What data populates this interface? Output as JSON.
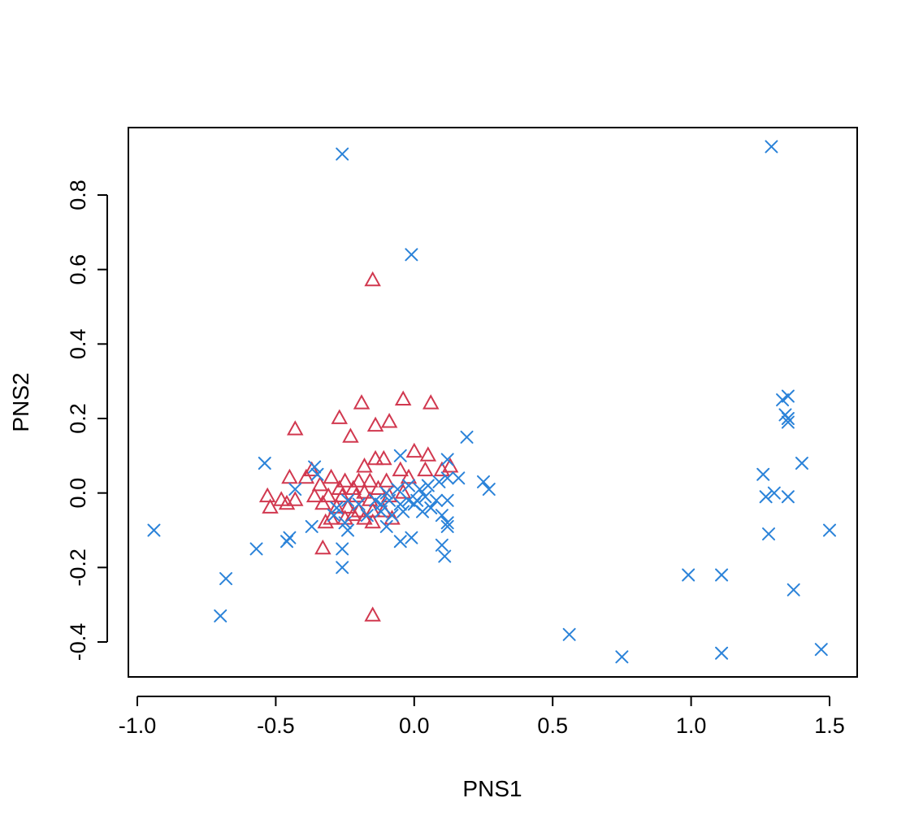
{
  "chart_data": {
    "type": "scatter",
    "xlabel": "PNS1",
    "ylabel": "PNS2",
    "xlim": [
      -1.0,
      1.5
    ],
    "ylim": [
      -0.45,
      0.93
    ],
    "x_ticks": [
      -1.0,
      -0.5,
      0.0,
      0.5,
      1.0,
      1.5
    ],
    "x_tick_labels": [
      "-1.0",
      "-0.5",
      "0.0",
      "0.5",
      "1.0",
      "1.5"
    ],
    "y_ticks": [
      -0.4,
      -0.2,
      0.0,
      0.2,
      0.4,
      0.6,
      0.8
    ],
    "y_tick_labels": [
      "-0.4",
      "-0.2",
      "0.0",
      "0.2",
      "0.4",
      "0.6",
      "0.8"
    ],
    "grid": false,
    "series": [
      {
        "marker": "triangle",
        "color": "#D1384F",
        "points": [
          [
            -0.15,
            0.57
          ],
          [
            -0.04,
            0.25
          ],
          [
            -0.19,
            0.24
          ],
          [
            0.06,
            0.24
          ],
          [
            -0.27,
            0.2
          ],
          [
            -0.09,
            0.19
          ],
          [
            -0.14,
            0.18
          ],
          [
            -0.43,
            0.17
          ],
          [
            -0.23,
            0.15
          ],
          [
            0.0,
            0.11
          ],
          [
            0.05,
            0.1
          ],
          [
            -0.14,
            0.09
          ],
          [
            -0.11,
            0.09
          ],
          [
            0.13,
            0.07
          ],
          [
            -0.18,
            0.07
          ],
          [
            0.1,
            0.06
          ],
          [
            -0.05,
            0.06
          ],
          [
            0.04,
            0.06
          ],
          [
            -0.37,
            0.06
          ],
          [
            -0.39,
            0.04
          ],
          [
            -0.45,
            0.04
          ],
          [
            -0.3,
            0.04
          ],
          [
            -0.25,
            0.03
          ],
          [
            -0.2,
            0.03
          ],
          [
            -0.16,
            0.03
          ],
          [
            -0.1,
            0.03
          ],
          [
            -0.02,
            0.04
          ],
          [
            -0.34,
            0.02
          ],
          [
            -0.27,
            0.01
          ],
          [
            -0.22,
            0.01
          ],
          [
            -0.18,
            0.0
          ],
          [
            -0.13,
            0.01
          ],
          [
            -0.53,
            -0.01
          ],
          [
            -0.48,
            -0.02
          ],
          [
            -0.43,
            -0.02
          ],
          [
            -0.36,
            -0.01
          ],
          [
            -0.31,
            -0.01
          ],
          [
            -0.26,
            -0.01
          ],
          [
            -0.21,
            -0.01
          ],
          [
            -0.16,
            -0.02
          ],
          [
            -0.09,
            -0.01
          ],
          [
            -0.04,
            0.0
          ],
          [
            -0.52,
            -0.04
          ],
          [
            -0.46,
            -0.03
          ],
          [
            -0.33,
            -0.03
          ],
          [
            -0.28,
            -0.04
          ],
          [
            -0.24,
            -0.04
          ],
          [
            -0.2,
            -0.05
          ],
          [
            -0.15,
            -0.05
          ],
          [
            -0.11,
            -0.05
          ],
          [
            -0.3,
            -0.07
          ],
          [
            -0.25,
            -0.07
          ],
          [
            -0.18,
            -0.07
          ],
          [
            -0.15,
            -0.08
          ],
          [
            -0.08,
            -0.07
          ],
          [
            -0.32,
            -0.08
          ],
          [
            -0.22,
            -0.06
          ],
          [
            -0.33,
            -0.15
          ],
          [
            -0.15,
            -0.33
          ]
        ]
      },
      {
        "marker": "cross",
        "color": "#2B83D9",
        "points": [
          [
            -0.26,
            0.91
          ],
          [
            1.29,
            0.93
          ],
          [
            -0.01,
            0.64
          ],
          [
            1.35,
            0.26
          ],
          [
            1.33,
            0.25
          ],
          [
            1.34,
            0.21
          ],
          [
            1.35,
            0.2
          ],
          [
            1.35,
            0.19
          ],
          [
            0.19,
            0.15
          ],
          [
            1.4,
            0.08
          ],
          [
            -0.54,
            0.08
          ],
          [
            -0.05,
            0.1
          ],
          [
            0.12,
            0.09
          ],
          [
            1.26,
            0.05
          ],
          [
            0.25,
            0.03
          ],
          [
            0.27,
            0.01
          ],
          [
            1.3,
            0.0
          ],
          [
            1.27,
            -0.01
          ],
          [
            1.35,
            -0.01
          ],
          [
            0.16,
            0.04
          ],
          [
            0.12,
            0.04
          ],
          [
            0.09,
            0.03
          ],
          [
            0.05,
            0.02
          ],
          [
            0.02,
            0.01
          ],
          [
            -0.02,
            0.02
          ],
          [
            -0.06,
            0.01
          ],
          [
            -0.1,
            0.0
          ],
          [
            -0.36,
            0.07
          ],
          [
            -0.35,
            0.05
          ],
          [
            -0.43,
            0.01
          ],
          [
            0.12,
            -0.02
          ],
          [
            0.08,
            -0.02
          ],
          [
            0.04,
            -0.01
          ],
          [
            0.01,
            -0.02
          ],
          [
            -0.02,
            -0.02
          ],
          [
            -0.05,
            -0.03
          ],
          [
            -0.09,
            -0.02
          ],
          [
            -0.12,
            -0.03
          ],
          [
            -0.14,
            -0.02
          ],
          [
            -0.2,
            -0.03
          ],
          [
            -0.24,
            -0.02
          ],
          [
            -0.28,
            -0.04
          ],
          [
            -0.29,
            -0.06
          ],
          [
            -0.25,
            -0.08
          ],
          [
            0.0,
            -0.03
          ],
          [
            0.03,
            -0.05
          ],
          [
            0.06,
            -0.04
          ],
          [
            -0.04,
            -0.05
          ],
          [
            -0.08,
            -0.06
          ],
          [
            -0.12,
            -0.05
          ],
          [
            -0.17,
            -0.06
          ],
          [
            0.12,
            -0.08
          ],
          [
            0.1,
            -0.06
          ],
          [
            0.12,
            -0.09
          ],
          [
            -0.37,
            -0.09
          ],
          [
            -0.24,
            -0.1
          ],
          [
            -0.1,
            -0.09
          ],
          [
            -0.05,
            -0.13
          ],
          [
            -0.01,
            -0.12
          ],
          [
            0.1,
            -0.14
          ],
          [
            0.11,
            -0.17
          ],
          [
            -0.45,
            -0.12
          ],
          [
            -0.46,
            -0.13
          ],
          [
            -0.57,
            -0.15
          ],
          [
            -0.26,
            -0.15
          ],
          [
            -0.26,
            -0.2
          ],
          [
            -0.94,
            -0.1
          ],
          [
            -0.68,
            -0.23
          ],
          [
            -0.7,
            -0.33
          ],
          [
            1.28,
            -0.11
          ],
          [
            1.5,
            -0.1
          ],
          [
            0.99,
            -0.22
          ],
          [
            1.11,
            -0.22
          ],
          [
            1.37,
            -0.26
          ],
          [
            0.56,
            -0.38
          ],
          [
            0.75,
            -0.44
          ],
          [
            1.11,
            -0.43
          ],
          [
            1.47,
            -0.42
          ]
        ]
      }
    ]
  }
}
